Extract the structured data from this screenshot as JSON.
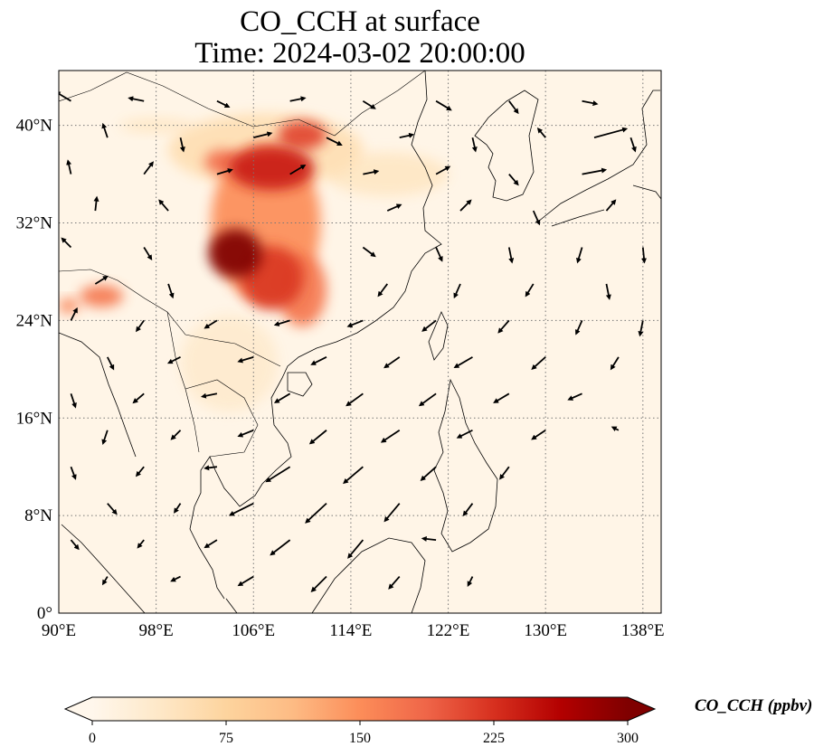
{
  "title": {
    "line1": "CO_CCH at surface",
    "line2": "Time: 2024-03-02 20:00:00"
  },
  "map": {
    "projection": "PlateCarree",
    "lon_range": [
      90,
      139.5
    ],
    "lat_range": [
      0,
      44.5
    ],
    "gridlines": "dotted",
    "lon_ticks": [
      {
        "value": 98,
        "label": "98°E"
      },
      {
        "value": 106,
        "label": "106°E"
      },
      {
        "value": 114,
        "label": "114°E"
      },
      {
        "value": 122,
        "label": "122°E"
      },
      {
        "value": 130,
        "label": "130°E"
      },
      {
        "value": 138,
        "label": "138°E"
      }
    ],
    "lon_tick_first": {
      "value": 90,
      "label": "90°E"
    },
    "lat_ticks": [
      {
        "value": 0,
        "label": "0°"
      },
      {
        "value": 8,
        "label": "8°N"
      },
      {
        "value": 16,
        "label": "16°N"
      },
      {
        "value": 24,
        "label": "24°N"
      },
      {
        "value": 32,
        "label": "32°N"
      },
      {
        "value": 40,
        "label": "40°N"
      }
    ],
    "field": "CO_CCH",
    "background_value_ppbv": 5,
    "plumes_ppbv": [
      {
        "name": "Sichuan basin",
        "lon": 104.5,
        "lat": 29.5,
        "r_lon": 2.2,
        "r_lat": 2.0,
        "value": 300
      },
      {
        "name": "Chongqing / Guizhou",
        "lon": 107.5,
        "lat": 27.5,
        "r_lon": 2.6,
        "r_lat": 2.6,
        "value": 220
      },
      {
        "name": "Shaanxi / Shanxi",
        "lon": 107.5,
        "lat": 36.5,
        "r_lon": 3.5,
        "r_lat": 1.8,
        "value": 240
      },
      {
        "name": "Inner Mongolia",
        "lon": 110.0,
        "lat": 39.2,
        "r_lon": 2.0,
        "r_lat": 1.2,
        "value": 210
      },
      {
        "name": "Gansu",
        "lon": 103.5,
        "lat": 37.0,
        "r_lon": 1.5,
        "r_lat": 1.0,
        "value": 180
      },
      {
        "name": "Central plume",
        "lon": 107.0,
        "lat": 32.0,
        "r_lon": 4.5,
        "r_lat": 6.5,
        "value": 150
      },
      {
        "name": "Hubei / Hunan",
        "lon": 110.0,
        "lat": 26.5,
        "r_lon": 2.0,
        "r_lat": 3.0,
        "value": 170
      },
      {
        "name": "Northern diffuse",
        "lon": 107.0,
        "lat": 38.0,
        "r_lon": 8.0,
        "r_lat": 3.0,
        "value": 55
      },
      {
        "name": "Eastward drift",
        "lon": 117.0,
        "lat": 36.0,
        "r_lon": 5.0,
        "r_lat": 1.8,
        "value": 40
      },
      {
        "name": "Southern diffuse",
        "lon": 104.0,
        "lat": 20.5,
        "r_lon": 4.0,
        "r_lat": 4.0,
        "value": 30
      },
      {
        "name": "Bangladesh / Assam",
        "lon": 93.5,
        "lat": 26.0,
        "r_lon": 1.8,
        "r_lat": 0.9,
        "value": 170
      },
      {
        "name": "Eastern Himalaya",
        "lon": 90.8,
        "lat": 25.2,
        "r_lon": 0.8,
        "r_lat": 0.6,
        "value": 160
      },
      {
        "name": "Mongolia tail",
        "lon": 98.0,
        "lat": 40.0,
        "r_lon": 3.0,
        "r_lat": 0.6,
        "value": 40
      }
    ],
    "wind_vectors": [
      {
        "lon": 91,
        "lat": 42,
        "u": -1.0,
        "v": 0.6
      },
      {
        "lon": 97,
        "lat": 42,
        "u": -1.0,
        "v": 0.2
      },
      {
        "lon": 103,
        "lat": 42,
        "u": 0.8,
        "v": -0.4
      },
      {
        "lon": 109,
        "lat": 42,
        "u": 1.0,
        "v": 0.2
      },
      {
        "lon": 115,
        "lat": 42,
        "u": 0.8,
        "v": -0.5
      },
      {
        "lon": 121,
        "lat": 42,
        "u": 1.0,
        "v": -0.6
      },
      {
        "lon": 127,
        "lat": 42,
        "u": 0.6,
        "v": -0.8
      },
      {
        "lon": 133,
        "lat": 42,
        "u": 1.0,
        "v": -0.2
      },
      {
        "lon": 94,
        "lat": 39,
        "u": -0.3,
        "v": 0.9
      },
      {
        "lon": 100,
        "lat": 39,
        "u": 0.2,
        "v": -0.9
      },
      {
        "lon": 106,
        "lat": 39,
        "u": 1.2,
        "v": 0.3
      },
      {
        "lon": 112,
        "lat": 39,
        "u": 1.0,
        "v": -0.5
      },
      {
        "lon": 118,
        "lat": 39,
        "u": 0.9,
        "v": 0.2
      },
      {
        "lon": 124,
        "lat": 39,
        "u": 0.2,
        "v": -0.9
      },
      {
        "lon": 130,
        "lat": 39,
        "u": -0.5,
        "v": 0.6
      },
      {
        "lon": 134,
        "lat": 39,
        "u": 2.2,
        "v": 0.6
      },
      {
        "lon": 137,
        "lat": 39,
        "u": 0.3,
        "v": -0.9
      },
      {
        "lon": 91,
        "lat": 36,
        "u": -0.2,
        "v": 0.9
      },
      {
        "lon": 97,
        "lat": 36,
        "u": 0.6,
        "v": 0.8
      },
      {
        "lon": 103,
        "lat": 36,
        "u": 1.0,
        "v": 0.3
      },
      {
        "lon": 109,
        "lat": 36,
        "u": 1.0,
        "v": 0.6
      },
      {
        "lon": 115,
        "lat": 36,
        "u": 1.0,
        "v": 0.2
      },
      {
        "lon": 121,
        "lat": 36,
        "u": 0.9,
        "v": 0.5
      },
      {
        "lon": 127,
        "lat": 36,
        "u": 0.6,
        "v": -0.7
      },
      {
        "lon": 133,
        "lat": 36,
        "u": 1.6,
        "v": 0.3
      },
      {
        "lon": 93,
        "lat": 33,
        "u": 0.1,
        "v": 0.9
      },
      {
        "lon": 99,
        "lat": 33,
        "u": -0.6,
        "v": 0.7
      },
      {
        "lon": 117,
        "lat": 33,
        "u": 0.9,
        "v": 0.4
      },
      {
        "lon": 123,
        "lat": 33,
        "u": 0.7,
        "v": 0.7
      },
      {
        "lon": 129,
        "lat": 33,
        "u": 0.4,
        "v": -0.9
      },
      {
        "lon": 135,
        "lat": 33,
        "u": 0.6,
        "v": 0.7
      },
      {
        "lon": 91,
        "lat": 30,
        "u": -0.6,
        "v": 0.6
      },
      {
        "lon": 97,
        "lat": 30,
        "u": 0.5,
        "v": -0.8
      },
      {
        "lon": 115,
        "lat": 30,
        "u": 0.8,
        "v": -0.6
      },
      {
        "lon": 121,
        "lat": 30,
        "u": 0.4,
        "v": -0.9
      },
      {
        "lon": 127,
        "lat": 30,
        "u": 0.2,
        "v": -1.0
      },
      {
        "lon": 133,
        "lat": 30,
        "u": -0.3,
        "v": -1.0
      },
      {
        "lon": 138,
        "lat": 30,
        "u": 0.1,
        "v": -1.0
      },
      {
        "lon": 93,
        "lat": 27,
        "u": 0.8,
        "v": 0.5
      },
      {
        "lon": 99,
        "lat": 27,
        "u": 0.3,
        "v": -0.9
      },
      {
        "lon": 117,
        "lat": 27,
        "u": -0.6,
        "v": -0.8
      },
      {
        "lon": 123,
        "lat": 27,
        "u": -0.4,
        "v": -0.9
      },
      {
        "lon": 129,
        "lat": 27,
        "u": -0.5,
        "v": -0.8
      },
      {
        "lon": 135,
        "lat": 27,
        "u": 0.2,
        "v": -1.0
      },
      {
        "lon": 91,
        "lat": 24,
        "u": 0.4,
        "v": 0.8
      },
      {
        "lon": 97,
        "lat": 24,
        "u": -0.5,
        "v": -0.7
      },
      {
        "lon": 103,
        "lat": 24,
        "u": -0.8,
        "v": -0.5
      },
      {
        "lon": 109,
        "lat": 24,
        "u": -1.0,
        "v": -0.3
      },
      {
        "lon": 115,
        "lat": 24,
        "u": -1.0,
        "v": -0.4
      },
      {
        "lon": 121,
        "lat": 24,
        "u": -0.9,
        "v": -0.7
      },
      {
        "lon": 127,
        "lat": 24,
        "u": -0.7,
        "v": -0.8
      },
      {
        "lon": 133,
        "lat": 24,
        "u": -0.4,
        "v": -0.9
      },
      {
        "lon": 138,
        "lat": 24,
        "u": -0.2,
        "v": -1.0
      },
      {
        "lon": 94,
        "lat": 21,
        "u": 0.4,
        "v": -0.8
      },
      {
        "lon": 100,
        "lat": 21,
        "u": -0.8,
        "v": -0.4
      },
      {
        "lon": 106,
        "lat": 21,
        "u": -1.0,
        "v": -0.3
      },
      {
        "lon": 112,
        "lat": 21,
        "u": -1.0,
        "v": -0.5
      },
      {
        "lon": 118,
        "lat": 21,
        "u": -1.0,
        "v": -0.7
      },
      {
        "lon": 124,
        "lat": 21,
        "u": -1.2,
        "v": -0.7
      },
      {
        "lon": 130,
        "lat": 21,
        "u": -0.9,
        "v": -0.8
      },
      {
        "lon": 136,
        "lat": 21,
        "u": -0.5,
        "v": -0.8
      },
      {
        "lon": 91,
        "lat": 18,
        "u": 0.3,
        "v": -0.9
      },
      {
        "lon": 97,
        "lat": 18,
        "u": -0.7,
        "v": -0.6
      },
      {
        "lon": 103,
        "lat": 18,
        "u": -1.0,
        "v": -0.2
      },
      {
        "lon": 109,
        "lat": 18,
        "u": -1.0,
        "v": -0.6
      },
      {
        "lon": 115,
        "lat": 18,
        "u": -1.1,
        "v": -0.8
      },
      {
        "lon": 121,
        "lat": 18,
        "u": -1.1,
        "v": -0.8
      },
      {
        "lon": 127,
        "lat": 18,
        "u": -1.0,
        "v": -0.6
      },
      {
        "lon": 133,
        "lat": 18,
        "u": -0.9,
        "v": -0.4
      },
      {
        "lon": 94,
        "lat": 15,
        "u": -0.3,
        "v": -0.9
      },
      {
        "lon": 100,
        "lat": 15,
        "u": -0.6,
        "v": -0.6
      },
      {
        "lon": 106,
        "lat": 15,
        "u": -1.0,
        "v": -0.4
      },
      {
        "lon": 112,
        "lat": 15,
        "u": -1.1,
        "v": -0.9
      },
      {
        "lon": 118,
        "lat": 15,
        "u": -1.2,
        "v": -0.8
      },
      {
        "lon": 124,
        "lat": 15,
        "u": -1.0,
        "v": -0.5
      },
      {
        "lon": 130,
        "lat": 15,
        "u": -0.9,
        "v": -0.6
      },
      {
        "lon": 136,
        "lat": 15,
        "u": -0.4,
        "v": 0.2
      },
      {
        "lon": 91,
        "lat": 12,
        "u": 0.3,
        "v": -0.8
      },
      {
        "lon": 97,
        "lat": 12,
        "u": -0.5,
        "v": -0.6
      },
      {
        "lon": 103,
        "lat": 12,
        "u": -0.8,
        "v": -0.1
      },
      {
        "lon": 109,
        "lat": 12,
        "u": -1.6,
        "v": -1.0
      },
      {
        "lon": 115,
        "lat": 12,
        "u": -1.3,
        "v": -1.1
      },
      {
        "lon": 121,
        "lat": 12,
        "u": -1.0,
        "v": -0.9
      },
      {
        "lon": 127,
        "lat": 12,
        "u": -0.6,
        "v": -0.8
      },
      {
        "lon": 94,
        "lat": 9,
        "u": 0.6,
        "v": -0.7
      },
      {
        "lon": 100,
        "lat": 9,
        "u": -0.4,
        "v": -0.6
      },
      {
        "lon": 106,
        "lat": 9,
        "u": -1.6,
        "v": -0.8
      },
      {
        "lon": 112,
        "lat": 9,
        "u": -1.4,
        "v": -1.3
      },
      {
        "lon": 118,
        "lat": 9,
        "u": -1.0,
        "v": -1.2
      },
      {
        "lon": 124,
        "lat": 9,
        "u": -0.6,
        "v": -0.8
      },
      {
        "lon": 91,
        "lat": 6,
        "u": 0.5,
        "v": -0.6
      },
      {
        "lon": 97,
        "lat": 6,
        "u": -0.4,
        "v": -0.5
      },
      {
        "lon": 103,
        "lat": 6,
        "u": -0.8,
        "v": -0.5
      },
      {
        "lon": 109,
        "lat": 6,
        "u": -1.3,
        "v": -1.0
      },
      {
        "lon": 115,
        "lat": 6,
        "u": -1.0,
        "v": -1.2
      },
      {
        "lon": 121,
        "lat": 6,
        "u": -0.9,
        "v": 0.1
      },
      {
        "lon": 94,
        "lat": 3,
        "u": -0.3,
        "v": -0.5
      },
      {
        "lon": 100,
        "lat": 3,
        "u": -0.6,
        "v": -0.3
      },
      {
        "lon": 106,
        "lat": 3,
        "u": -1.0,
        "v": -0.6
      },
      {
        "lon": 112,
        "lat": 3,
        "u": -1.0,
        "v": -1.0
      },
      {
        "lon": 118,
        "lat": 3,
        "u": -0.7,
        "v": -0.8
      },
      {
        "lon": 124,
        "lat": 3,
        "u": -0.3,
        "v": -0.6
      }
    ]
  },
  "colorbar": {
    "label": "CO_CCH (ppbv)",
    "colormap": "OrRd",
    "range": [
      0,
      300
    ],
    "extend": "both",
    "ticks": [
      {
        "value": 0,
        "label": "0"
      },
      {
        "value": 75,
        "label": "75"
      },
      {
        "value": 150,
        "label": "150"
      },
      {
        "value": 225,
        "label": "225"
      },
      {
        "value": 300,
        "label": "300"
      }
    ],
    "stops": [
      "#fff7ec",
      "#fee8c8",
      "#fdd49e",
      "#fdbb84",
      "#fc8d59",
      "#ef6548",
      "#d7301f",
      "#b30000",
      "#7f0000"
    ]
  }
}
